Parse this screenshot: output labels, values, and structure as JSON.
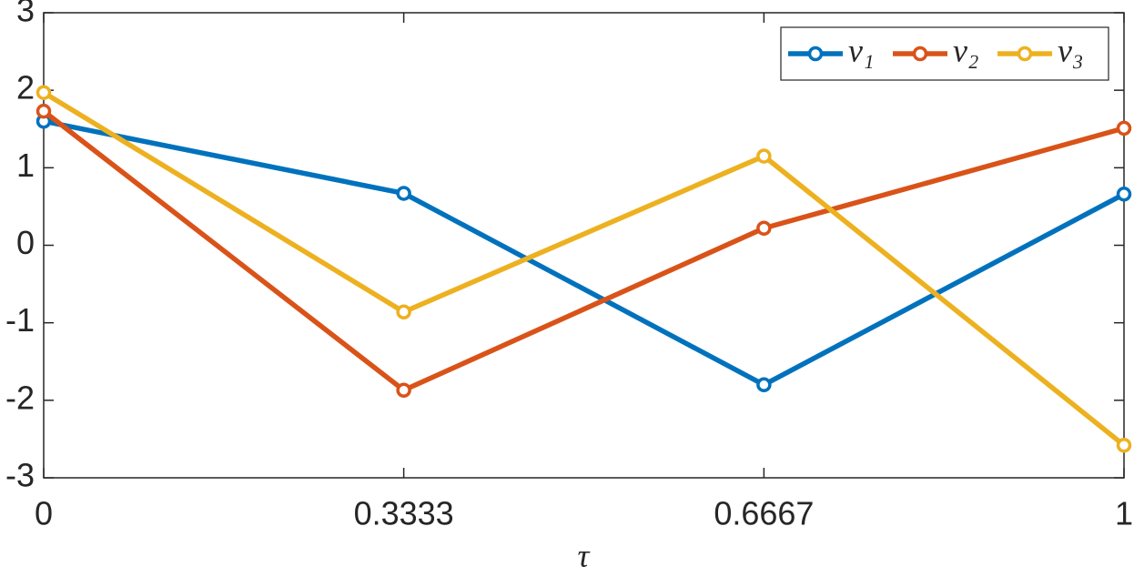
{
  "chart_data": {
    "type": "line",
    "x_label": "τ",
    "x": [
      0,
      0.3333,
      0.6667,
      1
    ],
    "xlim": [
      0,
      1
    ],
    "xticks": [
      0,
      0.3333,
      0.6667,
      1
    ],
    "ylim": [
      -3,
      3
    ],
    "yticks": [
      -3,
      -2,
      -1,
      0,
      1,
      2,
      3
    ],
    "legend_location": "northeast",
    "series": [
      {
        "name": "v₁",
        "color": "#0072BD",
        "values": [
          1.6,
          0.67,
          -1.8,
          0.66
        ]
      },
      {
        "name": "v₂",
        "color": "#D95319",
        "values": [
          1.73,
          -1.87,
          0.22,
          1.51
        ]
      },
      {
        "name": "v₃",
        "color": "#EDB120",
        "values": [
          1.97,
          -0.86,
          1.15,
          -2.58
        ]
      }
    ]
  }
}
